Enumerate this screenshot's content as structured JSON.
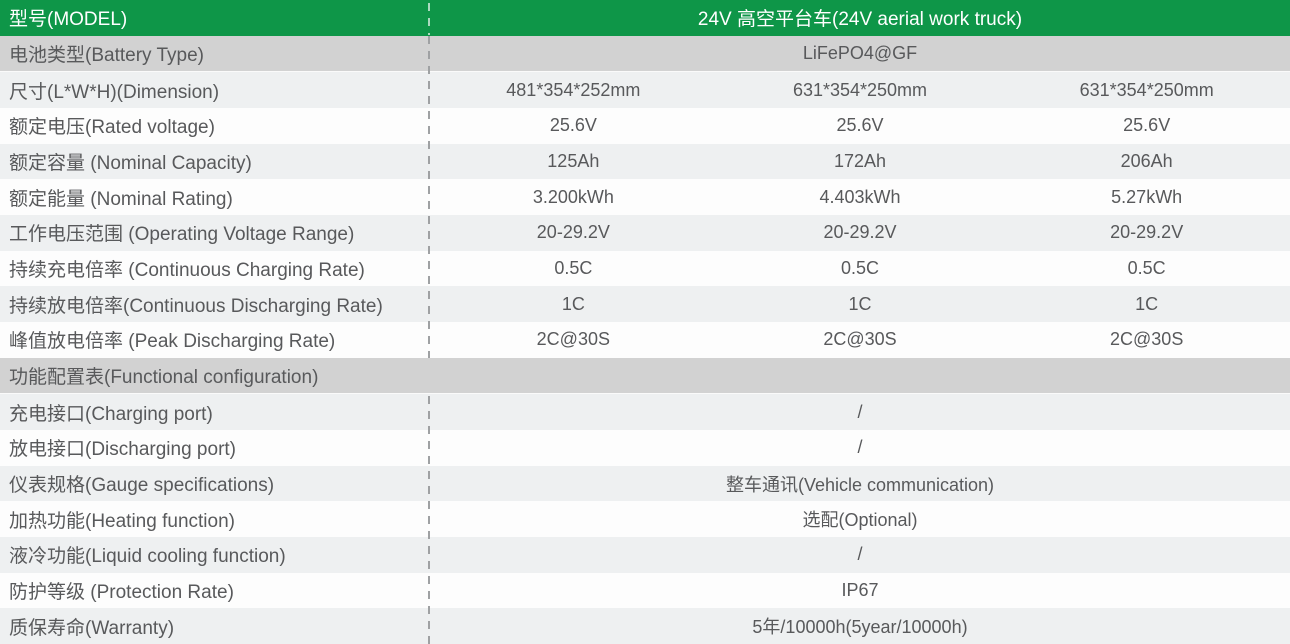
{
  "colors": {
    "header_bg": "#0e9648",
    "header_text": "#ffffff",
    "row_dark": "#d2d2d2",
    "row_light": "#eef0f1",
    "row_white": "#fdfdfd",
    "text": "#58595b",
    "divider_dash": "#9fa1a3"
  },
  "header": {
    "label": "型号(MODEL)",
    "value": "24V 高空平台车(24V aerial work truck)"
  },
  "rows": [
    {
      "type": "span",
      "shade": "dark",
      "label": "电池类型(Battery Type)",
      "value": "LiFePO4@GF"
    },
    {
      "type": "three",
      "shade": "light",
      "label": "尺寸(L*W*H)(Dimension)",
      "values": [
        "481*354*252mm",
        "631*354*250mm",
        "631*354*250mm"
      ]
    },
    {
      "type": "three",
      "shade": "white",
      "label": "额定电压(Rated voltage)",
      "values": [
        "25.6V",
        "25.6V",
        "25.6V"
      ]
    },
    {
      "type": "three",
      "shade": "light",
      "label": "额定容量 (Nominal Capacity)",
      "values": [
        "125Ah",
        "172Ah",
        "206Ah"
      ]
    },
    {
      "type": "three",
      "shade": "white",
      "label": "额定能量 (Nominal Rating)",
      "values": [
        "3.200kWh",
        "4.403kWh",
        "5.27kWh"
      ]
    },
    {
      "type": "three",
      "shade": "light",
      "label": "工作电压范围 (Operating Voltage Range)",
      "values": [
        "20-29.2V",
        "20-29.2V",
        "20-29.2V"
      ]
    },
    {
      "type": "three",
      "shade": "white",
      "label": "持续充电倍率 (Continuous Charging Rate)",
      "values": [
        "0.5C",
        "0.5C",
        "0.5C"
      ]
    },
    {
      "type": "three",
      "shade": "light",
      "label": "持续放电倍率(Continuous Discharging Rate)",
      "values": [
        "1C",
        "1C",
        "1C"
      ]
    },
    {
      "type": "three",
      "shade": "white",
      "label": "峰值放电倍率 (Peak Discharging Rate)",
      "values": [
        "2C@30S",
        "2C@30S",
        "2C@30S"
      ]
    },
    {
      "type": "section",
      "shade": "dark",
      "label": "功能配置表(Functional configuration)"
    },
    {
      "type": "span",
      "shade": "light",
      "label": "充电接口(Charging port)",
      "value": "/"
    },
    {
      "type": "span",
      "shade": "white",
      "label": "放电接口(Discharging port)",
      "value": "/"
    },
    {
      "type": "span",
      "shade": "light",
      "label": "仪表规格(Gauge specifications)",
      "value": "整车通讯(Vehicle communication)"
    },
    {
      "type": "span",
      "shade": "white",
      "label": "加热功能(Heating function)",
      "value": "选配(Optional)"
    },
    {
      "type": "span",
      "shade": "light",
      "label": "液冷功能(Liquid cooling function)",
      "value": "/"
    },
    {
      "type": "span",
      "shade": "white",
      "label": "防护等级 (Protection Rate)",
      "value": "IP67"
    },
    {
      "type": "span",
      "shade": "light",
      "label": "质保寿命(Warranty)",
      "value": "5年/10000h(5year/10000h)"
    }
  ]
}
